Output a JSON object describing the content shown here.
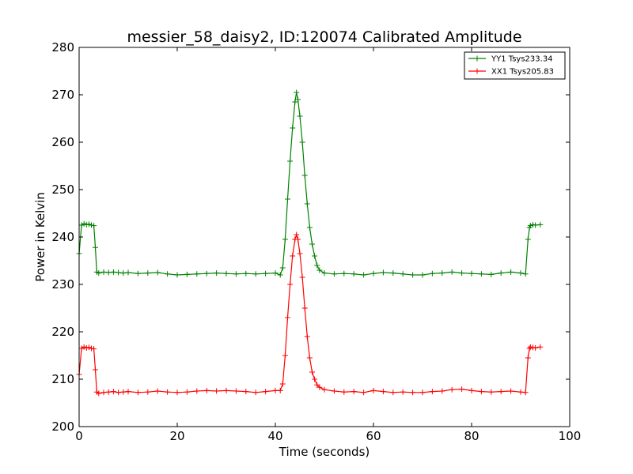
{
  "chart_data": {
    "type": "line",
    "title": "messier_58_daisy2, ID:120074 Calibrated Amplitude",
    "xlabel": "Time (seconds)",
    "ylabel": "Power in Kelvin",
    "xlim": [
      0,
      100
    ],
    "ylim": [
      200,
      280
    ],
    "xticks": [
      0,
      20,
      40,
      60,
      80,
      100
    ],
    "yticks": [
      200,
      210,
      220,
      230,
      240,
      250,
      260,
      270,
      280
    ],
    "grid": false,
    "legend_position": "top-right",
    "series": [
      {
        "name": "YY1 Tsys233.34",
        "color": "#008000",
        "marker": "+",
        "x": [
          0,
          0.5,
          1,
          1.5,
          2,
          2.5,
          3,
          3.3,
          3.6,
          4,
          5,
          6,
          7,
          8,
          9,
          10,
          12,
          14,
          16,
          18,
          20,
          22,
          24,
          26,
          28,
          30,
          32,
          34,
          36,
          38,
          40,
          41,
          41.5,
          42,
          42.5,
          43,
          43.5,
          44,
          44.3,
          44.6,
          45,
          45.5,
          46,
          46.5,
          47,
          47.5,
          48,
          48.5,
          49,
          50,
          52,
          54,
          56,
          58,
          60,
          62,
          64,
          66,
          68,
          70,
          72,
          74,
          76,
          78,
          80,
          82,
          84,
          86,
          88,
          90,
          91,
          91.5,
          91.8,
          92,
          92.5,
          93,
          94
        ],
        "values": [
          236.5,
          242.5,
          242.8,
          242.6,
          242.7,
          242.5,
          242.4,
          237.8,
          232.6,
          232.4,
          232.6,
          232.5,
          232.6,
          232.5,
          232.4,
          232.5,
          232.3,
          232.4,
          232.5,
          232.2,
          232.0,
          232.1,
          232.2,
          232.3,
          232.4,
          232.3,
          232.2,
          232.3,
          232.2,
          232.3,
          232.4,
          232.0,
          233.5,
          239.5,
          248.0,
          256.0,
          263.0,
          268.5,
          270.5,
          269.0,
          265.5,
          260.0,
          253.0,
          247.0,
          242.0,
          238.5,
          236.0,
          234.0,
          233.0,
          232.4,
          232.2,
          232.3,
          232.2,
          232.0,
          232.3,
          232.5,
          232.4,
          232.2,
          232.0,
          232.0,
          232.3,
          232.4,
          232.6,
          232.4,
          232.3,
          232.2,
          232.1,
          232.4,
          232.6,
          232.4,
          232.2,
          239.5,
          242.0,
          242.4,
          242.6,
          242.5,
          242.6
        ]
      },
      {
        "name": "XX1 Tsys205.83",
        "color": "#ff0000",
        "marker": "+",
        "x": [
          0,
          0.5,
          1,
          1.5,
          2,
          2.5,
          3,
          3.3,
          3.6,
          4,
          5,
          6,
          7,
          8,
          9,
          10,
          12,
          14,
          16,
          18,
          20,
          22,
          24,
          26,
          28,
          30,
          32,
          34,
          36,
          38,
          40,
          41,
          41.5,
          42,
          42.5,
          43,
          43.5,
          44,
          44.3,
          44.6,
          45,
          45.5,
          46,
          46.5,
          47,
          47.5,
          48,
          48.5,
          49,
          50,
          52,
          54,
          56,
          58,
          60,
          62,
          64,
          66,
          68,
          70,
          72,
          74,
          76,
          78,
          80,
          82,
          84,
          86,
          88,
          90,
          91,
          91.5,
          91.8,
          92,
          92.5,
          93,
          94
        ],
        "values": [
          211.0,
          216.5,
          216.8,
          216.6,
          216.7,
          216.5,
          216.4,
          212.0,
          207.3,
          207.0,
          207.2,
          207.3,
          207.4,
          207.2,
          207.3,
          207.4,
          207.2,
          207.3,
          207.5,
          207.3,
          207.2,
          207.3,
          207.5,
          207.6,
          207.5,
          207.6,
          207.5,
          207.4,
          207.2,
          207.4,
          207.6,
          207.6,
          209.0,
          215.0,
          223.0,
          230.0,
          236.0,
          239.5,
          240.5,
          239.5,
          236.5,
          231.5,
          225.0,
          219.0,
          214.5,
          211.5,
          210.0,
          208.8,
          208.3,
          207.8,
          207.5,
          207.3,
          207.4,
          207.2,
          207.6,
          207.4,
          207.2,
          207.3,
          207.2,
          207.2,
          207.4,
          207.5,
          207.8,
          207.9,
          207.6,
          207.4,
          207.3,
          207.4,
          207.5,
          207.3,
          207.2,
          214.5,
          216.5,
          216.8,
          216.7,
          216.6,
          216.8
        ]
      }
    ]
  }
}
